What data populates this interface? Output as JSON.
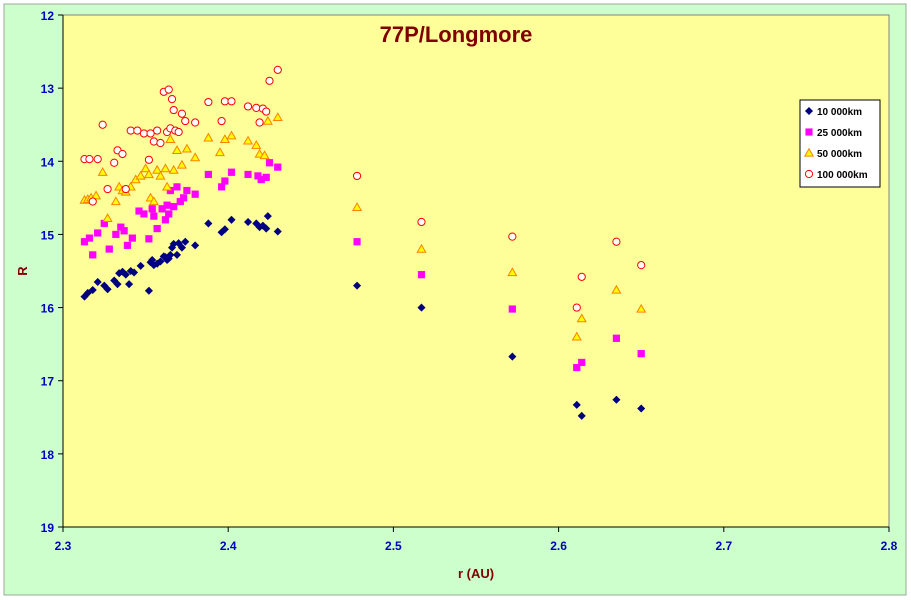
{
  "chart_data": {
    "type": "scatter",
    "title": "77P/Longmore",
    "xlabel": "r (AU)",
    "ylabel": "R",
    "xlim": [
      2.3,
      2.8
    ],
    "ylim": [
      12,
      19
    ],
    "y_inverted": true,
    "x_ticks": [
      "2.3",
      "2.4",
      "2.5",
      "2.6",
      "2.7",
      "2.8"
    ],
    "y_ticks": [
      "12",
      "13",
      "14",
      "15",
      "16",
      "17",
      "18",
      "19"
    ],
    "grid": false,
    "legend_position": "right",
    "colors": {
      "outer_background": "#ccffcc",
      "plot_background": "#ffff99",
      "title": "#800000",
      "axis_title": "#800000",
      "tick_labels": "#0000c0"
    },
    "series": [
      {
        "name": "10 000km",
        "marker": "diamond",
        "color": "#000080",
        "x": [
          2.313,
          2.315,
          2.318,
          2.321,
          2.325,
          2.327,
          2.331,
          2.333,
          2.334,
          2.336,
          2.338,
          2.34,
          2.341,
          2.343,
          2.347,
          2.352,
          2.353,
          2.354,
          2.355,
          2.357,
          2.359,
          2.361,
          2.362,
          2.363,
          2.364,
          2.365,
          2.366,
          2.367,
          2.369,
          2.37,
          2.372,
          2.374,
          2.38,
          2.388,
          2.396,
          2.398,
          2.402,
          2.412,
          2.417,
          2.419,
          2.421,
          2.423,
          2.424,
          2.43,
          2.478,
          2.517,
          2.572,
          2.611,
          2.614,
          2.635,
          2.65
        ],
        "y": [
          15.85,
          15.8,
          15.76,
          15.65,
          15.7,
          15.75,
          15.63,
          15.68,
          15.53,
          15.51,
          15.55,
          15.68,
          15.5,
          15.52,
          15.43,
          15.77,
          15.38,
          15.35,
          15.42,
          15.4,
          15.37,
          15.3,
          15.31,
          15.35,
          15.33,
          15.28,
          15.18,
          15.13,
          15.28,
          15.12,
          15.18,
          15.1,
          15.15,
          14.85,
          14.97,
          14.93,
          14.8,
          14.83,
          14.85,
          14.9,
          14.88,
          14.92,
          14.75,
          14.96,
          15.7,
          16.0,
          16.67,
          17.33,
          17.48,
          17.26,
          17.38
        ]
      },
      {
        "name": "25 000km",
        "marker": "square",
        "color": "#ff00ff",
        "x": [
          2.313,
          2.316,
          2.318,
          2.321,
          2.325,
          2.328,
          2.332,
          2.335,
          2.337,
          2.339,
          2.342,
          2.346,
          2.349,
          2.352,
          2.354,
          2.355,
          2.357,
          2.36,
          2.362,
          2.363,
          2.364,
          2.365,
          2.367,
          2.369,
          2.371,
          2.373,
          2.375,
          2.38,
          2.388,
          2.396,
          2.398,
          2.402,
          2.412,
          2.418,
          2.42,
          2.423,
          2.425,
          2.43,
          2.478,
          2.517,
          2.572,
          2.611,
          2.614,
          2.635,
          2.65
        ],
        "y": [
          15.1,
          15.05,
          15.28,
          14.98,
          14.85,
          15.2,
          15.0,
          14.9,
          14.95,
          15.15,
          15.05,
          14.68,
          14.72,
          15.06,
          14.65,
          14.75,
          14.92,
          14.65,
          14.8,
          14.6,
          14.72,
          14.4,
          14.62,
          14.35,
          14.55,
          14.5,
          14.4,
          14.45,
          14.18,
          14.35,
          14.27,
          14.15,
          14.18,
          14.2,
          14.25,
          14.22,
          14.02,
          14.08,
          15.1,
          15.55,
          16.02,
          16.82,
          16.75,
          16.42,
          16.63
        ]
      },
      {
        "name": "50 000km",
        "marker": "triangle",
        "color": "#ff8000",
        "x": [
          2.313,
          2.315,
          2.317,
          2.32,
          2.324,
          2.327,
          2.332,
          2.334,
          2.336,
          2.338,
          2.341,
          2.344,
          2.347,
          2.35,
          2.352,
          2.353,
          2.355,
          2.357,
          2.359,
          2.362,
          2.363,
          2.365,
          2.367,
          2.369,
          2.372,
          2.375,
          2.38,
          2.388,
          2.395,
          2.398,
          2.402,
          2.412,
          2.417,
          2.419,
          2.422,
          2.424,
          2.43,
          2.478,
          2.517,
          2.572,
          2.611,
          2.614,
          2.635,
          2.65
        ],
        "y": [
          14.53,
          14.52,
          14.5,
          14.47,
          14.15,
          14.78,
          14.55,
          14.35,
          14.4,
          14.42,
          14.35,
          14.25,
          14.2,
          14.1,
          14.18,
          14.5,
          14.55,
          14.12,
          14.2,
          14.1,
          14.35,
          13.7,
          14.12,
          13.85,
          14.05,
          13.83,
          13.95,
          13.68,
          13.88,
          13.7,
          13.65,
          13.72,
          13.78,
          13.9,
          13.92,
          13.45,
          13.4,
          14.63,
          15.2,
          15.52,
          16.4,
          16.15,
          15.76,
          16.02
        ]
      },
      {
        "name": "100 000km",
        "marker": "circle",
        "color": "#ff0000",
        "x": [
          2.313,
          2.316,
          2.318,
          2.321,
          2.324,
          2.327,
          2.331,
          2.333,
          2.336,
          2.338,
          2.341,
          2.345,
          2.349,
          2.352,
          2.353,
          2.355,
          2.357,
          2.359,
          2.361,
          2.363,
          2.364,
          2.365,
          2.366,
          2.367,
          2.368,
          2.37,
          2.372,
          2.374,
          2.38,
          2.388,
          2.396,
          2.398,
          2.402,
          2.412,
          2.417,
          2.419,
          2.421,
          2.423,
          2.425,
          2.43,
          2.478,
          2.517,
          2.572,
          2.611,
          2.614,
          2.635,
          2.65
        ],
        "y": [
          13.97,
          13.97,
          14.55,
          13.97,
          13.5,
          14.38,
          14.02,
          13.85,
          13.9,
          14.38,
          13.58,
          13.58,
          13.62,
          13.98,
          13.62,
          13.73,
          13.58,
          13.75,
          13.05,
          13.6,
          13.02,
          13.55,
          13.15,
          13.3,
          13.58,
          13.6,
          13.35,
          13.45,
          13.47,
          13.19,
          13.45,
          13.18,
          13.18,
          13.25,
          13.27,
          13.47,
          13.28,
          13.32,
          12.9,
          12.75,
          14.2,
          14.83,
          15.03,
          16.0,
          15.58,
          15.1,
          15.42
        ]
      }
    ]
  }
}
